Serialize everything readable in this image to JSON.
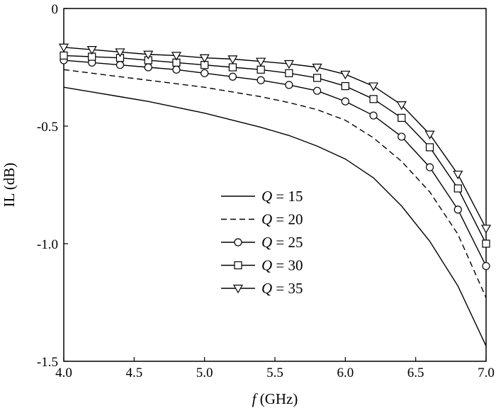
{
  "chart_data": {
    "type": "line",
    "xlabel_italic": "f",
    "xlabel_rest": " (GHz)",
    "ylabel": "IL (dB)",
    "xlim": [
      4.0,
      7.0
    ],
    "ylim": [
      -1.5,
      0
    ],
    "xticks": [
      4.0,
      4.5,
      5.0,
      5.5,
      6.0,
      6.5,
      7.0
    ],
    "yticks": [
      0,
      -0.5,
      -1.0,
      -1.5
    ],
    "xtick_labels": [
      "4.0",
      "4.5",
      "5.0",
      "5.5",
      "6.0",
      "6.5",
      "7.0"
    ],
    "ytick_labels": [
      "0",
      "-0.5",
      "-1.0",
      "-1.5"
    ],
    "x": [
      4.0,
      4.2,
      4.4,
      4.6,
      4.8,
      5.0,
      5.2,
      5.4,
      5.6,
      5.8,
      6.0,
      6.2,
      6.4,
      6.6,
      6.8,
      7.0
    ],
    "series": [
      {
        "name": "Q = 15",
        "q_value": "15",
        "marker": "none",
        "dash": "solid",
        "values": [
          -0.335,
          -0.355,
          -0.375,
          -0.395,
          -0.42,
          -0.445,
          -0.475,
          -0.505,
          -0.54,
          -0.585,
          -0.64,
          -0.72,
          -0.84,
          -0.99,
          -1.18,
          -1.435
        ]
      },
      {
        "name": "Q = 20",
        "q_value": "20",
        "marker": "none",
        "dash": "dashed",
        "values": [
          -0.26,
          -0.275,
          -0.29,
          -0.305,
          -0.32,
          -0.335,
          -0.355,
          -0.375,
          -0.4,
          -0.43,
          -0.475,
          -0.55,
          -0.65,
          -0.78,
          -0.96,
          -1.23
        ]
      },
      {
        "name": "Q = 25",
        "q_value": "25",
        "marker": "circle",
        "dash": "solid",
        "values": [
          -0.22,
          -0.23,
          -0.24,
          -0.25,
          -0.26,
          -0.275,
          -0.29,
          -0.305,
          -0.325,
          -0.35,
          -0.395,
          -0.455,
          -0.545,
          -0.675,
          -0.855,
          -1.095
        ]
      },
      {
        "name": "Q = 30",
        "q_value": "30",
        "marker": "square",
        "dash": "solid",
        "values": [
          -0.2,
          -0.205,
          -0.21,
          -0.22,
          -0.23,
          -0.24,
          -0.25,
          -0.26,
          -0.275,
          -0.295,
          -0.33,
          -0.385,
          -0.465,
          -0.59,
          -0.765,
          -1.0
        ]
      },
      {
        "name": "Q = 35",
        "q_value": "35",
        "marker": "triangle-down",
        "dash": "solid",
        "values": [
          -0.165,
          -0.175,
          -0.185,
          -0.195,
          -0.2,
          -0.21,
          -0.215,
          -0.225,
          -0.235,
          -0.25,
          -0.28,
          -0.33,
          -0.41,
          -0.535,
          -0.705,
          -0.935
        ]
      }
    ],
    "legend_position": "lower-left-center",
    "grid": false,
    "colors": {
      "line": "#000000",
      "background": "#ffffff"
    }
  }
}
